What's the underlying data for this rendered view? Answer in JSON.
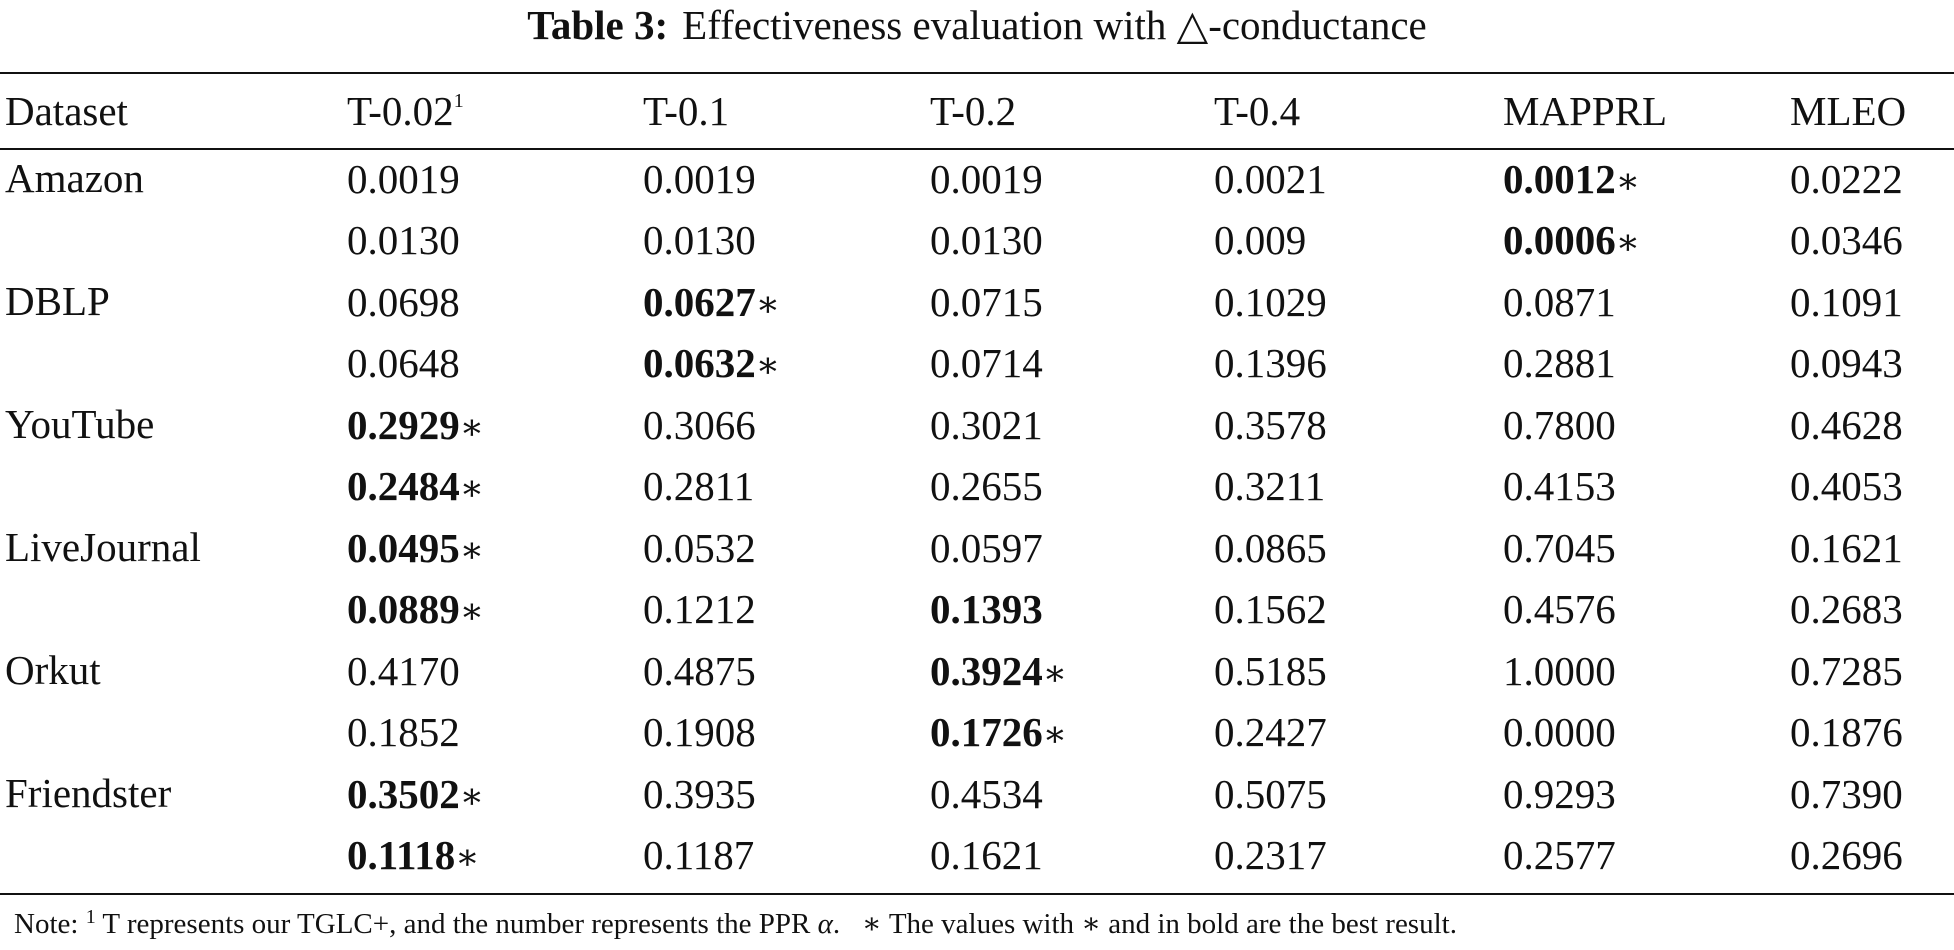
{
  "caption": {
    "label": "Table 3:",
    "text": "Effectiveness evaluation with △-conductance"
  },
  "table": {
    "headers": [
      {
        "label": "Dataset",
        "footnote": ""
      },
      {
        "label": "T-0.02",
        "footnote": "1"
      },
      {
        "label": "T-0.1",
        "footnote": ""
      },
      {
        "label": "T-0.2",
        "footnote": ""
      },
      {
        "label": "T-0.4",
        "footnote": ""
      },
      {
        "label": "MAPPRL",
        "footnote": ""
      },
      {
        "label": "MLEO",
        "footnote": ""
      }
    ],
    "best_marker": "∗",
    "datasets": [
      {
        "name": "Amazon",
        "rows": [
          [
            {
              "v": "0.0019",
              "best": false
            },
            {
              "v": "0.0019",
              "best": false
            },
            {
              "v": "0.0019",
              "best": false
            },
            {
              "v": "0.0021",
              "best": false
            },
            {
              "v": "0.0012",
              "best": true,
              "star": true
            },
            {
              "v": "0.0222",
              "best": false
            }
          ],
          [
            {
              "v": "0.0130",
              "best": false
            },
            {
              "v": "0.0130",
              "best": false
            },
            {
              "v": "0.0130",
              "best": false
            },
            {
              "v": "0.009",
              "best": false
            },
            {
              "v": "0.0006",
              "best": true,
              "star": true
            },
            {
              "v": "0.0346",
              "best": false
            }
          ]
        ]
      },
      {
        "name": "DBLP",
        "rows": [
          [
            {
              "v": "0.0698",
              "best": false
            },
            {
              "v": "0.0627",
              "best": true,
              "star": true
            },
            {
              "v": "0.0715",
              "best": false
            },
            {
              "v": "0.1029",
              "best": false
            },
            {
              "v": "0.0871",
              "best": false
            },
            {
              "v": "0.1091",
              "best": false
            }
          ],
          [
            {
              "v": "0.0648",
              "best": false
            },
            {
              "v": "0.0632",
              "best": true,
              "star": true
            },
            {
              "v": "0.0714",
              "best": false
            },
            {
              "v": "0.1396",
              "best": false
            },
            {
              "v": "0.2881",
              "best": false
            },
            {
              "v": "0.0943",
              "best": false
            }
          ]
        ]
      },
      {
        "name": "YouTube",
        "rows": [
          [
            {
              "v": "0.2929",
              "best": true,
              "star": true
            },
            {
              "v": "0.3066",
              "best": false
            },
            {
              "v": "0.3021",
              "best": false
            },
            {
              "v": "0.3578",
              "best": false
            },
            {
              "v": "0.7800",
              "best": false
            },
            {
              "v": "0.4628",
              "best": false
            }
          ],
          [
            {
              "v": "0.2484",
              "best": true,
              "star": true
            },
            {
              "v": "0.2811",
              "best": false
            },
            {
              "v": "0.2655",
              "best": false
            },
            {
              "v": "0.3211",
              "best": false
            },
            {
              "v": "0.4153",
              "best": false
            },
            {
              "v": "0.4053",
              "best": false
            }
          ]
        ]
      },
      {
        "name": "LiveJournal",
        "rows": [
          [
            {
              "v": "0.0495",
              "best": true,
              "star": true
            },
            {
              "v": "0.0532",
              "best": false
            },
            {
              "v": "0.0597",
              "best": false
            },
            {
              "v": "0.0865",
              "best": false
            },
            {
              "v": "0.7045",
              "best": false
            },
            {
              "v": "0.1621",
              "best": false
            }
          ],
          [
            {
              "v": "0.0889",
              "best": true,
              "star": true
            },
            {
              "v": "0.1212",
              "best": false
            },
            {
              "v": "0.1393",
              "best": true,
              "star": false
            },
            {
              "v": "0.1562",
              "best": false
            },
            {
              "v": "0.4576",
              "best": false
            },
            {
              "v": "0.2683",
              "best": false
            }
          ]
        ]
      },
      {
        "name": "Orkut",
        "rows": [
          [
            {
              "v": "0.4170",
              "best": false
            },
            {
              "v": "0.4875",
              "best": false
            },
            {
              "v": "0.3924",
              "best": true,
              "star": true
            },
            {
              "v": "0.5185",
              "best": false
            },
            {
              "v": "1.0000",
              "best": false
            },
            {
              "v": "0.7285",
              "best": false
            }
          ],
          [
            {
              "v": "0.1852",
              "best": false
            },
            {
              "v": "0.1908",
              "best": false
            },
            {
              "v": "0.1726",
              "best": true,
              "star": true
            },
            {
              "v": "0.2427",
              "best": false
            },
            {
              "v": "0.0000",
              "best": false
            },
            {
              "v": "0.1876",
              "best": false
            }
          ]
        ]
      },
      {
        "name": "Friendster",
        "rows": [
          [
            {
              "v": "0.3502",
              "best": true,
              "star": true
            },
            {
              "v": "0.3935",
              "best": false
            },
            {
              "v": "0.4534",
              "best": false
            },
            {
              "v": "0.5075",
              "best": false
            },
            {
              "v": "0.9293",
              "best": false
            },
            {
              "v": "0.7390",
              "best": false
            }
          ],
          [
            {
              "v": "0.1118",
              "best": true,
              "star": true
            },
            {
              "v": "0.1187",
              "best": false
            },
            {
              "v": "0.1621",
              "best": false
            },
            {
              "v": "0.2317",
              "best": false
            },
            {
              "v": "0.2577",
              "best": false
            },
            {
              "v": "0.2696",
              "best": false
            }
          ]
        ]
      }
    ]
  },
  "note": {
    "prefix": "Note:",
    "footnote_mark": "1",
    "text_before_alpha": "T represents our TGLC+, and the number represents the PPR",
    "alpha": "α",
    "text_after_alpha": ".",
    "star": "∗",
    "text_after_star": "The values with ∗ and in bold are the best result."
  }
}
